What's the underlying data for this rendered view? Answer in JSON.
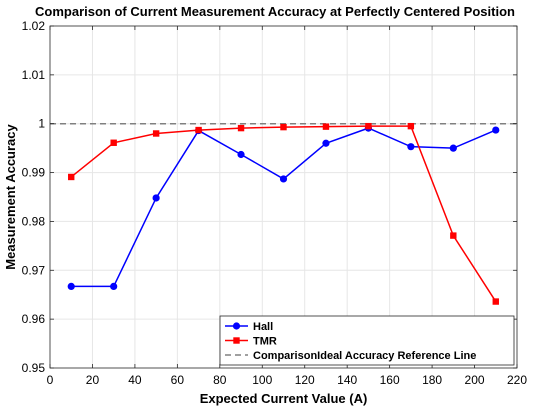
{
  "chart_data": {
    "type": "line",
    "title": "Comparison of Current Measurement Accuracy at Perfectly Centered Position",
    "xlabel": "Expected Current Value (A)",
    "ylabel": "Measurement Accuracy",
    "xlim": [
      0,
      220
    ],
    "ylim": [
      0.95,
      1.02
    ],
    "xticks": [
      "0",
      "20",
      "40",
      "60",
      "80",
      "100",
      "120",
      "140",
      "160",
      "180",
      "200",
      "220"
    ],
    "yticks": [
      "0.95",
      "0.96",
      "0.97",
      "0.98",
      "0.99",
      "1",
      "1.01",
      "1.02"
    ],
    "grid": true,
    "legend_position": "bottom-right",
    "series": [
      {
        "name": "Hall",
        "color": "#0000ff",
        "marker": "circle",
        "x": [
          10,
          30,
          50,
          70,
          90,
          110,
          130,
          150,
          170,
          190,
          210
        ],
        "y": [
          0.9667,
          0.9667,
          0.9848,
          0.9986,
          0.9937,
          0.9887,
          0.996,
          0.9991,
          0.9953,
          0.995,
          0.9987
        ]
      },
      {
        "name": "TMR",
        "color": "#ff0000",
        "marker": "square",
        "x": [
          10,
          30,
          50,
          70,
          90,
          110,
          130,
          150,
          170,
          190,
          210
        ],
        "y": [
          0.9891,
          0.9961,
          0.998,
          0.9987,
          0.9991,
          0.9993,
          0.9994,
          0.9995,
          0.9995,
          0.9771,
          0.9636
        ]
      }
    ],
    "reference_line": {
      "name": "ComparisonIdeal Accuracy Reference Line",
      "y": 1.0,
      "color": "#808080",
      "style": "dashed"
    }
  }
}
